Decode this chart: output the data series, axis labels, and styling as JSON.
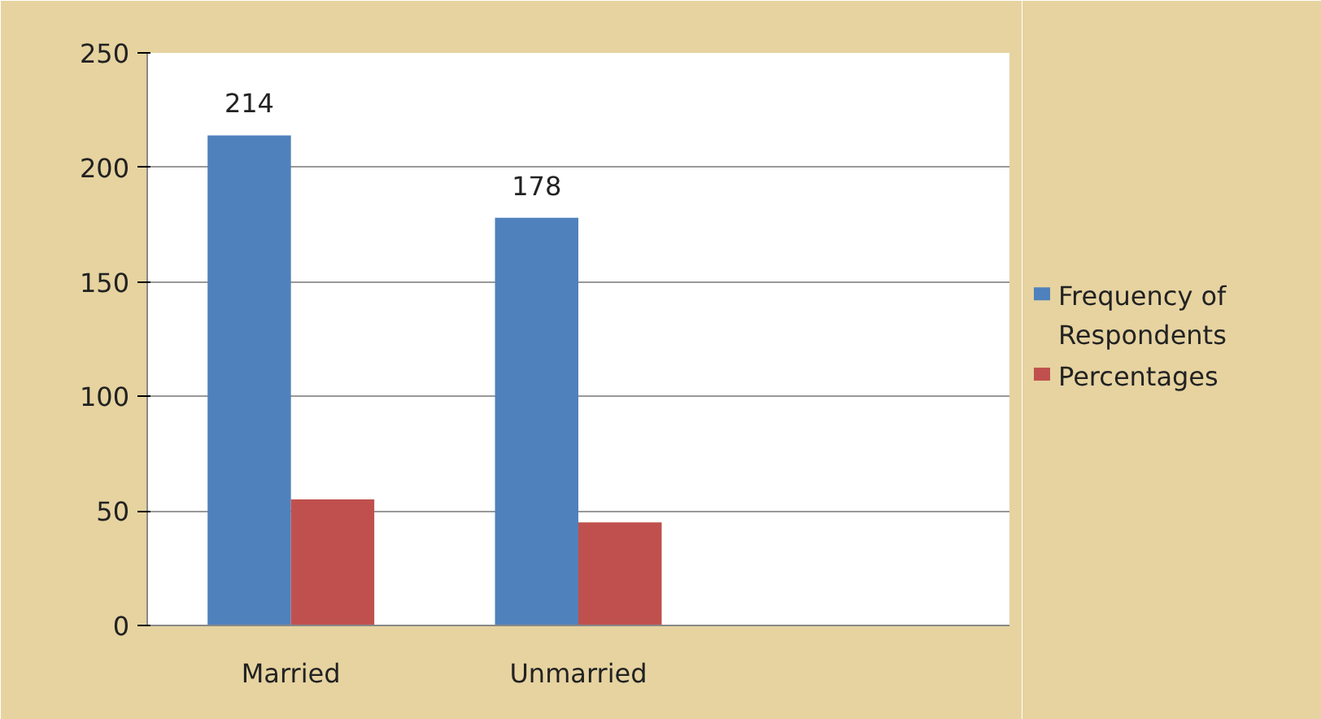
{
  "chart_data": {
    "type": "bar",
    "categories": [
      "Married",
      "Unmarried",
      null
    ],
    "series": [
      {
        "name": "Frequency of Respondents",
        "color": "#4f81bd",
        "values": [
          214,
          178,
          null
        ],
        "value_labels": [
          "214",
          "178",
          null
        ]
      },
      {
        "name": "Percentages",
        "color": "#c0504d",
        "values": [
          55,
          45,
          null
        ]
      }
    ],
    "ylim": [
      0,
      250
    ],
    "yticks": [
      0,
      50,
      100,
      150,
      200,
      250
    ],
    "grid": "y",
    "legend": "right"
  }
}
